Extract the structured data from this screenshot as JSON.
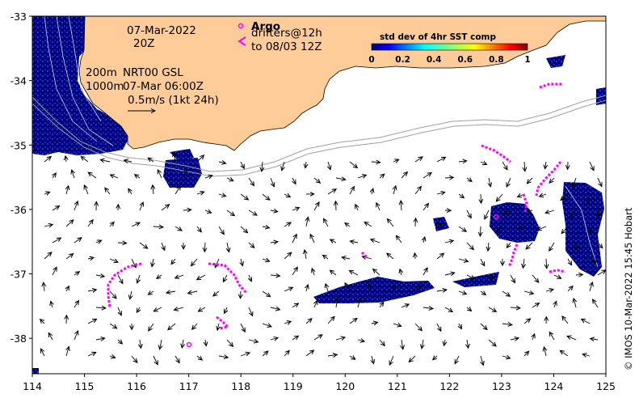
{
  "map": {
    "date": "07-Mar-2022",
    "time": "20Z",
    "argo_label": "Argo",
    "drifters_label": "drifters@12h",
    "drifters_window": "to 08/03 12Z",
    "contour_200m": "200m",
    "contour_1000m": "1000m",
    "product": "NRT00 GSL",
    "product_time": "07-Mar 06:00Z",
    "scale_vector": "0.5m/s (1kt 24h)",
    "credit": "© IMOS 10-Mar-2022 15:45 Hobart",
    "colors": {
      "land": "#fdcc99",
      "deep_blue": "#00007f",
      "drifter": "#ff00ff",
      "contour": "#999999"
    }
  },
  "colorbar": {
    "title": "std dev of 4hr SST comp",
    "ticks": [
      "0",
      "0.2",
      "0.4",
      "0.6",
      "0.8",
      "1"
    ],
    "range": [
      0,
      1
    ],
    "colormap": "jet"
  },
  "axes": {
    "x_ticks": [
      "114",
      "115",
      "116",
      "117",
      "118",
      "119",
      "120",
      "121",
      "122",
      "123",
      "124",
      "125"
    ],
    "y_ticks": [
      "-33",
      "-34",
      "-35",
      "-36",
      "-37",
      "-38"
    ],
    "lon_range": [
      114,
      125
    ],
    "lat_range": [
      -38.55,
      -33
    ]
  }
}
